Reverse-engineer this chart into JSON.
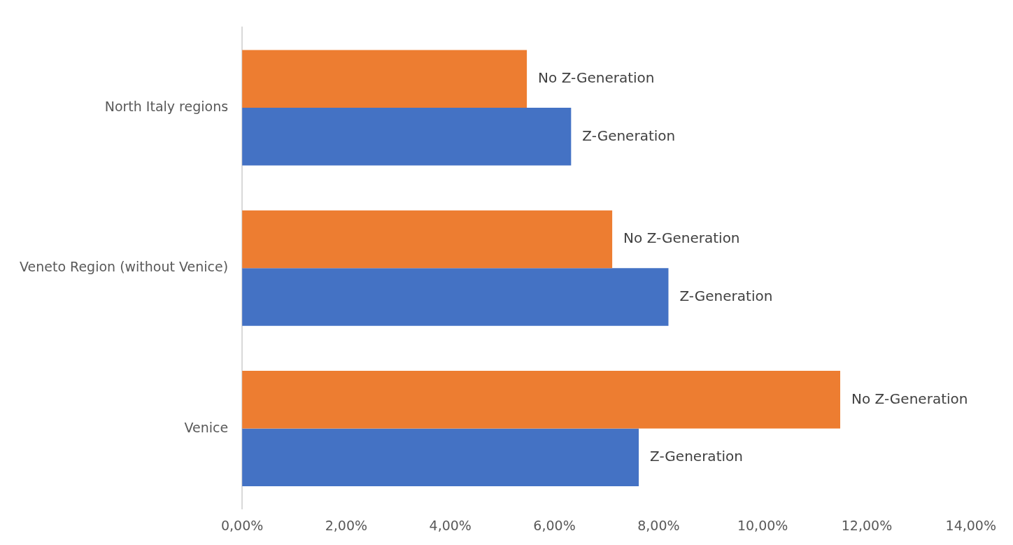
{
  "chart_data": {
    "type": "bar",
    "orientation": "horizontal",
    "categories": [
      "North Italy regions",
      "Veneto Region (without Venice)",
      "Venice"
    ],
    "series": [
      {
        "name": "No Z-Generation",
        "color": "#ed7d31",
        "values": [
          5.47,
          7.11,
          11.49
        ]
      },
      {
        "name": "Z-Generation",
        "color": "#4472c4",
        "values": [
          6.32,
          8.19,
          7.62
        ]
      }
    ],
    "xlim": [
      0,
      14
    ],
    "xticks": [
      {
        "value": 0,
        "label": "0,00%"
      },
      {
        "value": 2,
        "label": "2,00%"
      },
      {
        "value": 4,
        "label": "4,00%"
      },
      {
        "value": 6,
        "label": "6,00%"
      },
      {
        "value": 8,
        "label": "8,00%"
      },
      {
        "value": 10,
        "label": "10,00%"
      },
      {
        "value": 12,
        "label": "12,00%"
      },
      {
        "value": 14,
        "label": "14,00%"
      }
    ],
    "grid": false,
    "legend": false
  }
}
